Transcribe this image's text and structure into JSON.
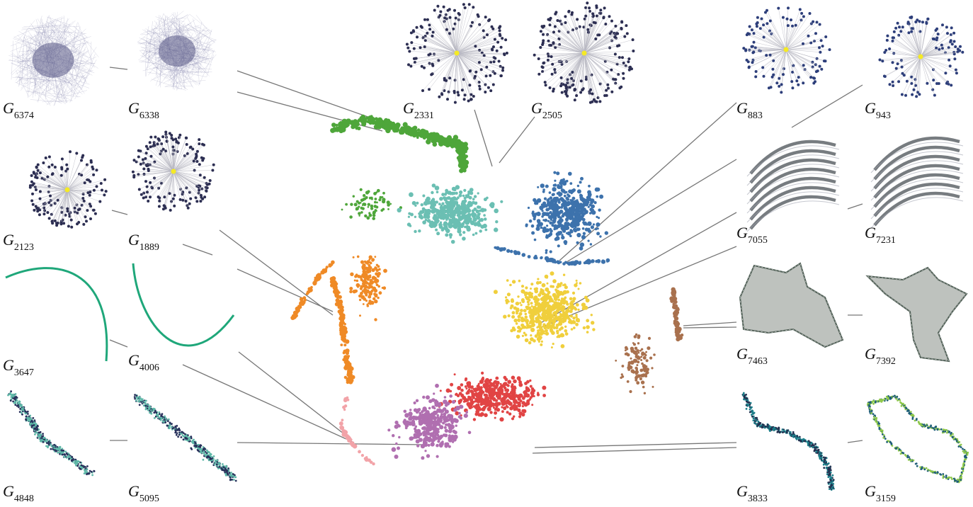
{
  "labels": {
    "g6374": {
      "letter": "G",
      "sub": "6374"
    },
    "g6338": {
      "letter": "G",
      "sub": "6338"
    },
    "g2331": {
      "letter": "G",
      "sub": "2331"
    },
    "g2505": {
      "letter": "G",
      "sub": "2505"
    },
    "g883": {
      "letter": "G",
      "sub": "883"
    },
    "g943": {
      "letter": "G",
      "sub": "943"
    },
    "g2123": {
      "letter": "G",
      "sub": "2123"
    },
    "g1889": {
      "letter": "G",
      "sub": "1889"
    },
    "g7055": {
      "letter": "G",
      "sub": "7055"
    },
    "g7231": {
      "letter": "G",
      "sub": "7231"
    },
    "g3647": {
      "letter": "G",
      "sub": "3647"
    },
    "g4006": {
      "letter": "G",
      "sub": "4006"
    },
    "g7463": {
      "letter": "G",
      "sub": "7463"
    },
    "g7392": {
      "letter": "G",
      "sub": "7392"
    },
    "g4848": {
      "letter": "G",
      "sub": "4848"
    },
    "g5095": {
      "letter": "G",
      "sub": "5095"
    },
    "g3833": {
      "letter": "G",
      "sub": "3833"
    },
    "g3159": {
      "letter": "G",
      "sub": "3159"
    }
  },
  "colors": {
    "cluster_green": "#4ea63a",
    "cluster_teal": "#6bbfb3",
    "cluster_blue": "#3d72ac",
    "cluster_yellow": "#f0cf3c",
    "cluster_orange": "#ef8a26",
    "cluster_red": "#e14444",
    "cluster_purple": "#b06fb0",
    "cluster_pink": "#f2a3a8",
    "cluster_brown": "#a9714e",
    "connector_line": "#777777",
    "star_node": "#2c2e52",
    "star_hub": "#f5ea24",
    "curve_green": "#1fa77a",
    "mesh_dark": "#3f4f45"
  }
}
